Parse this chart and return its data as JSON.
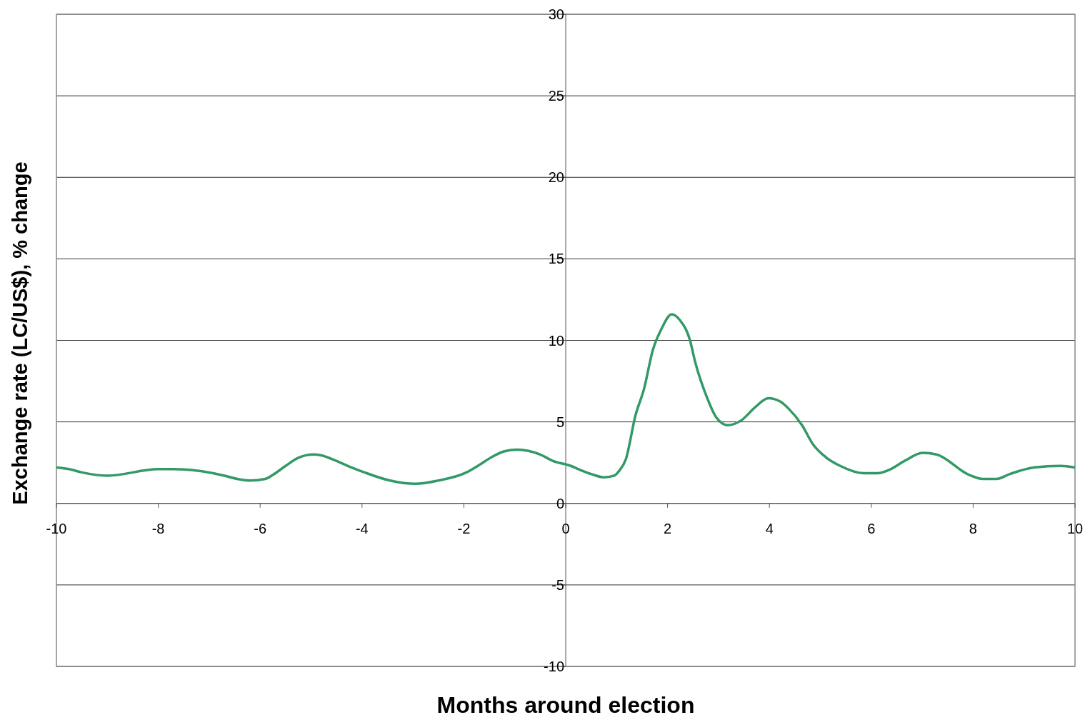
{
  "chart_data": {
    "type": "line",
    "xlabel": "Months around election",
    "ylabel": "Exchange rate (LC/US$), % change",
    "xlim": [
      -10,
      10
    ],
    "xticks": [
      -10,
      -8,
      -6,
      -4,
      -2,
      0,
      2,
      4,
      6,
      8,
      10
    ],
    "ylim": [
      -10,
      30
    ],
    "yticks": [
      -10,
      -5,
      0,
      5,
      10,
      15,
      20,
      25,
      30
    ],
    "grid": "y",
    "marker": "none",
    "line_style": "solid",
    "series": [
      {
        "color": "#339966",
        "x": [
          -10,
          -9.75,
          -9.5,
          -9,
          -8,
          -7.7,
          -6.7,
          -6.45,
          -6.2,
          -5.9,
          -5.75,
          -5.5,
          -5.25,
          -4.95,
          -4.8,
          -4.5,
          -4.2,
          -3.95,
          -3.45,
          -2.95,
          -2.5,
          -1.95,
          -1.7,
          -1.45,
          -1.2,
          -0.95,
          -0.5,
          -0.25,
          0.1,
          0.25,
          0.5,
          0.75,
          0.95,
          1.05,
          1.18,
          1.37,
          1.54,
          1.71,
          1.88,
          2.08,
          2.24,
          2.44,
          2.54,
          2.78,
          2.95,
          3.18,
          3.45,
          3.72,
          3.98,
          4.21,
          4.38,
          4.64,
          4.85,
          5.12,
          5.39,
          5.85,
          6.12,
          6.38,
          6.65,
          7.01,
          7.28,
          7.92,
          8.19,
          8.46,
          8.72,
          9.19,
          9.72,
          10
        ],
        "values": [
          2.2,
          2.1,
          1.9,
          1.7,
          2.1,
          2.1,
          1.7,
          1.5,
          1.4,
          1.5,
          1.75,
          2.3,
          2.8,
          3.0,
          2.95,
          2.6,
          2.2,
          1.9,
          1.4,
          1.2,
          1.4,
          1.9,
          2.35,
          2.85,
          3.2,
          3.3,
          3.0,
          2.6,
          2.3,
          2.1,
          1.8,
          1.6,
          1.7,
          2.0,
          2.7,
          5.4,
          7.05,
          9.4,
          10.7,
          11.6,
          11.25,
          10.0,
          8.7,
          6.45,
          5.3,
          4.8,
          5.1,
          5.9,
          6.45,
          6.25,
          5.8,
          4.8,
          3.65,
          2.8,
          2.3,
          1.85,
          1.85,
          2.1,
          2.6,
          3.1,
          3.0,
          1.75,
          1.5,
          1.5,
          1.8,
          2.2,
          2.3,
          2.2
        ]
      }
    ]
  }
}
